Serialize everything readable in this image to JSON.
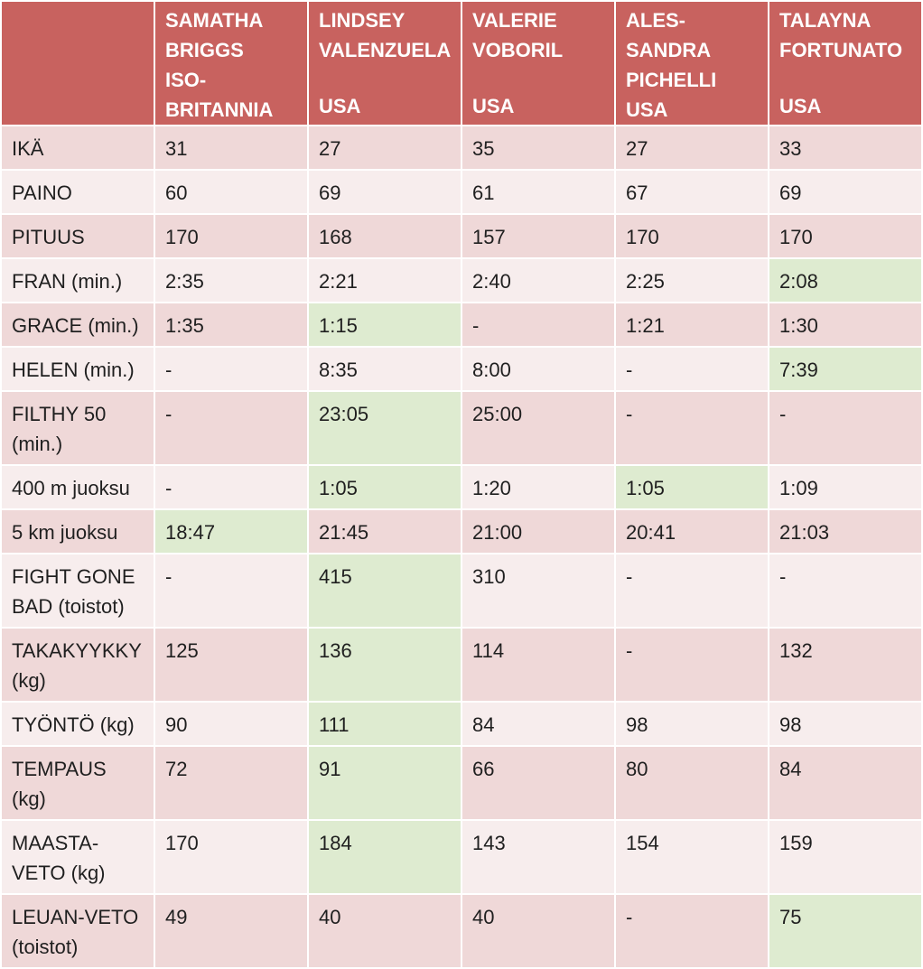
{
  "athletes": [
    {
      "name": "SAMATHA BRIGGS",
      "country": "ISO-BRITANNIA"
    },
    {
      "name": "LINDSEY VALENZUELA",
      "country": "USA"
    },
    {
      "name": "VALERIE VOBORIL",
      "country": "USA"
    },
    {
      "name": "ALES-SANDRA PICHELLI",
      "country": "USA"
    },
    {
      "name": "TALAYNA FORTUNATO",
      "country": "USA"
    }
  ],
  "rows": [
    {
      "label": "IKÄ",
      "values": [
        "31",
        "27",
        "35",
        "27",
        "33"
      ],
      "best": []
    },
    {
      "label": "PAINO",
      "values": [
        "60",
        "69",
        "61",
        "67",
        "69"
      ],
      "best": []
    },
    {
      "label": "PITUUS",
      "values": [
        "170",
        "168",
        "157",
        "170",
        "170"
      ],
      "best": []
    },
    {
      "label": "FRAN (min.)",
      "values": [
        "2:35",
        "2:21",
        "2:40",
        "2:25",
        "2:08"
      ],
      "best": [
        4
      ]
    },
    {
      "label": "GRACE (min.)",
      "values": [
        "1:35",
        "1:15",
        "-",
        "1:21",
        "1:30"
      ],
      "best": [
        1
      ]
    },
    {
      "label": "HELEN (min.)",
      "values": [
        "-",
        "8:35",
        "8:00",
        "-",
        "7:39"
      ],
      "best": [
        4
      ]
    },
    {
      "label": "FILTHY 50 (min.)",
      "values": [
        "-",
        "23:05",
        "25:00",
        "-",
        "-"
      ],
      "best": [
        1
      ]
    },
    {
      "label": "400 m juoksu",
      "values": [
        "-",
        "1:05",
        "1:20",
        "1:05",
        "1:09"
      ],
      "best": [
        1,
        3
      ]
    },
    {
      "label": "5 km juoksu",
      "values": [
        "18:47",
        "21:45",
        "21:00",
        "20:41",
        "21:03"
      ],
      "best": [
        0
      ]
    },
    {
      "label": "FIGHT GONE BAD (toistot)",
      "values": [
        "-",
        "415",
        "310",
        "-",
        "-"
      ],
      "best": [
        1
      ]
    },
    {
      "label": "TAKAKYYKKY (kg)",
      "values": [
        "125",
        "136",
        "114",
        "-",
        "132"
      ],
      "best": [
        1
      ]
    },
    {
      "label": "TYÖNTÖ (kg)",
      "values": [
        "90",
        "111",
        "84",
        "98",
        "98"
      ],
      "best": [
        1
      ]
    },
    {
      "label": "TEMPAUS (kg)",
      "values": [
        "72",
        "91",
        "66",
        "80",
        "84"
      ],
      "best": [
        1
      ]
    },
    {
      "label": "MAASTA-VETO (kg)",
      "values": [
        "170",
        "184",
        "143",
        "154",
        "159"
      ],
      "best": [
        1
      ]
    },
    {
      "label": "LEUAN-VETO (toistot)",
      "values": [
        "49",
        "40",
        "40",
        "-",
        "75"
      ],
      "best": [
        4
      ]
    }
  ],
  "colors": {
    "header_bg": "#c8625f",
    "row_odd": "#efd8d8",
    "row_even": "#f7eded",
    "best_bg": "#deebd0"
  }
}
